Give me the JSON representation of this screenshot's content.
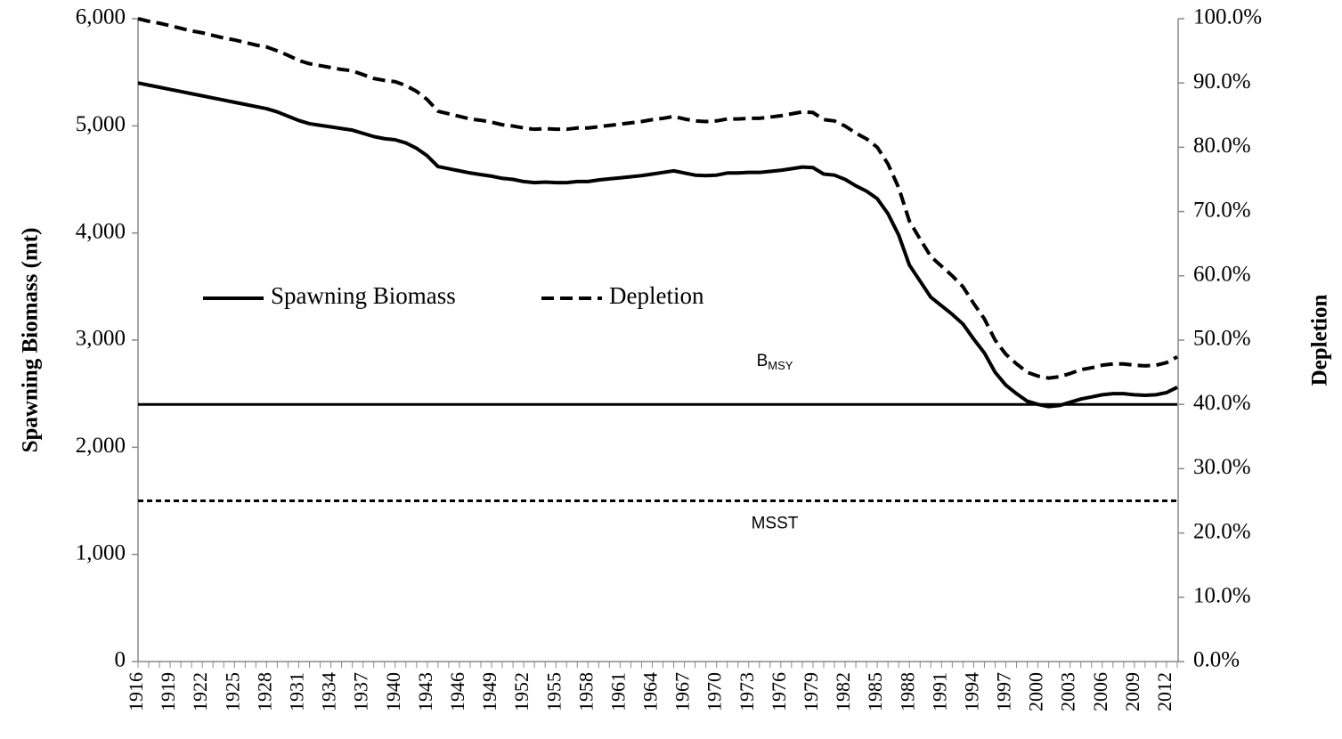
{
  "chart_data": {
    "type": "line",
    "y_axis_title": "Spawning Biomass (mt)",
    "y2_axis_title": "Depletion",
    "categories": [
      "1916",
      null,
      null,
      "1919",
      null,
      null,
      "1922",
      null,
      null,
      "1925",
      null,
      null,
      "1928",
      null,
      null,
      "1931",
      null,
      null,
      "1934",
      null,
      null,
      "1937",
      null,
      null,
      "1940",
      null,
      null,
      "1943",
      null,
      null,
      "1946",
      null,
      null,
      "1949",
      null,
      null,
      "1952",
      null,
      null,
      "1955",
      null,
      null,
      "1958",
      null,
      null,
      "1961",
      null,
      null,
      "1964",
      null,
      null,
      "1967",
      null,
      null,
      "1970",
      null,
      null,
      "1973",
      null,
      null,
      "1976",
      null,
      null,
      "1979",
      null,
      null,
      "1982",
      null,
      null,
      "1985",
      null,
      null,
      "1988",
      null,
      null,
      "1991",
      null,
      null,
      "1994",
      null,
      null,
      "1997",
      null,
      null,
      "2000",
      null,
      null,
      "2003",
      null,
      null,
      "2006",
      null,
      null,
      "2009",
      null,
      null,
      "2012",
      null
    ],
    "series": [
      {
        "name": "Spawning Biomass",
        "color": "#000000",
        "dash": "solid",
        "axis": "y",
        "values": [
          5400,
          5380,
          5360,
          5340,
          5320,
          5300,
          5280,
          5260,
          5240,
          5220,
          5200,
          5180,
          5160,
          5130,
          5090,
          5050,
          5020,
          5005,
          4990,
          4975,
          4960,
          4930,
          4900,
          4880,
          4870,
          4840,
          4790,
          4720,
          4620,
          4600,
          4580,
          4560,
          4545,
          4530,
          4510,
          4500,
          4480,
          4470,
          4475,
          4470,
          4470,
          4480,
          4480,
          4495,
          4505,
          4515,
          4525,
          4535,
          4550,
          4565,
          4580,
          4560,
          4540,
          4535,
          4540,
          4560,
          4560,
          4565,
          4565,
          4575,
          4585,
          4600,
          4615,
          4610,
          4550,
          4540,
          4500,
          4440,
          4390,
          4320,
          4180,
          3980,
          3700,
          3550,
          3400,
          3320,
          3240,
          3150,
          3010,
          2880,
          2700,
          2580,
          2500,
          2430,
          2400,
          2380,
          2390,
          2420,
          2450,
          2470,
          2490,
          2500,
          2500,
          2490,
          2485,
          2490,
          2510,
          2560
        ]
      },
      {
        "name": "Depletion",
        "color": "#000000",
        "dash": "dashed",
        "axis": "y2",
        "values": [
          100.0,
          99.6,
          99.3,
          98.9,
          98.5,
          98.1,
          97.8,
          97.4,
          97.0,
          96.7,
          96.3,
          95.9,
          95.6,
          95.0,
          94.3,
          93.5,
          93.0,
          92.7,
          92.4,
          92.1,
          91.9,
          91.3,
          90.7,
          90.4,
          90.2,
          89.6,
          88.7,
          87.4,
          85.6,
          85.2,
          84.8,
          84.4,
          84.2,
          83.9,
          83.5,
          83.3,
          83.0,
          82.8,
          82.9,
          82.8,
          82.8,
          83.0,
          83.0,
          83.2,
          83.4,
          83.6,
          83.8,
          84.0,
          84.3,
          84.5,
          84.8,
          84.4,
          84.1,
          84.0,
          84.1,
          84.4,
          84.4,
          84.5,
          84.5,
          84.7,
          84.9,
          85.2,
          85.5,
          85.4,
          84.3,
          84.1,
          83.3,
          82.2,
          81.3,
          80.0,
          77.4,
          73.7,
          68.5,
          65.7,
          63.0,
          61.5,
          60.0,
          58.3,
          55.7,
          53.3,
          50.0,
          47.8,
          46.3,
          45.0,
          44.4,
          44.1,
          44.3,
          44.8,
          45.4,
          45.7,
          46.1,
          46.3,
          46.3,
          46.1,
          46.0,
          46.1,
          46.5,
          47.4
        ]
      }
    ],
    "reference_lines": [
      {
        "value": 2400,
        "label": "B",
        "label_sub": "MSY",
        "dash": "solid",
        "label_side": "above"
      },
      {
        "value": 1500,
        "label": "MSST",
        "dash": "dashed",
        "label_side": "below"
      }
    ],
    "ylim": [
      0,
      6000
    ],
    "yticks": [
      0,
      {
        "value": 1000,
        "label": "1,000"
      },
      {
        "value": 2000,
        "label": "2,000"
      },
      {
        "value": 3000,
        "label": "3,000"
      },
      {
        "value": 4000,
        "label": "4,000"
      },
      {
        "value": 5000,
        "label": "5,000"
      },
      {
        "value": 6000,
        "label": "6,000"
      }
    ],
    "y2lim": [
      0,
      100
    ],
    "y2ticks": [
      {
        "value": 0,
        "label": "0.0%"
      },
      {
        "value": 10,
        "label": "10.0%"
      },
      {
        "value": 20,
        "label": "20.0%"
      },
      {
        "value": 30,
        "label": "30.0%"
      },
      {
        "value": 40,
        "label": "40.0%"
      },
      {
        "value": 50,
        "label": "50.0%"
      },
      {
        "value": 60,
        "label": "60.0%"
      },
      {
        "value": 70,
        "label": "70.0%"
      },
      {
        "value": 80,
        "label": "80.0%"
      },
      {
        "value": 90,
        "label": "90.0%"
      },
      {
        "value": 100,
        "label": "100.0%"
      }
    ],
    "grid": false,
    "legend": "left"
  }
}
